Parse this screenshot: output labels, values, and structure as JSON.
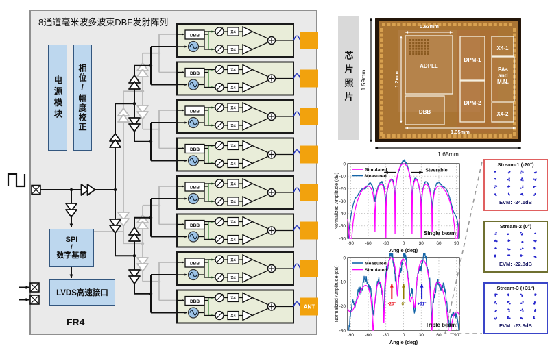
{
  "diagram": {
    "title": "8通道毫米波多波束DBF发射阵列",
    "power_module_label": "电源模块",
    "phase_cal_label": "相位/幅度校正",
    "spi_line1": "SPI",
    "spi_line2": "/",
    "spi_line3": "数字基带",
    "lvds_label": "LVDS高速接口",
    "substrate_label": "FR4",
    "ant_label": "ANT",
    "num_channels": 8,
    "channel": {
      "dbb_label": "DBB",
      "multiplier_label": "X4"
    },
    "colors": {
      "panel_bg": "#eaeaea",
      "panel_border": "#8f8f8f",
      "block_bg": "#e9edd9",
      "block_border": "#1a1a1a",
      "orange": "#f2a20d",
      "osc_fill": "#9dc3e6",
      "green": "#3a8a3a",
      "gray_tree": "#b9b9b9",
      "wire_blue": "#2233bb"
    }
  },
  "chip": {
    "panel_label": "芯片照片",
    "blocks": [
      {
        "name": "ADPLL",
        "lines": [
          "ADPLL"
        ]
      },
      {
        "name": "DBB",
        "lines": [
          "DBB"
        ]
      },
      {
        "name": "DPM-1",
        "lines": [
          "DPM-1"
        ]
      },
      {
        "name": "DPM-2",
        "lines": [
          "DPM-2"
        ]
      },
      {
        "name": "X4-1",
        "lines": [
          "X4-1"
        ]
      },
      {
        "name": "PAs and M.N.",
        "lines": [
          "PAs",
          "and",
          "M.N."
        ]
      },
      {
        "name": "X4-2",
        "lines": [
          "X4-2"
        ]
      }
    ],
    "dimensions": {
      "outer_height": "1.59mm",
      "outer_width": "1.65mm",
      "inner_width": "1.35mm",
      "inner_height": "1.2mm",
      "adpll_width": "0.63mm"
    }
  },
  "chart_data": [
    {
      "id": "single-beam",
      "type": "line",
      "title": "",
      "xlabel": "Angle (deg)",
      "ylabel": "Normalized Amplitude (dB)",
      "xlim": [
        -95,
        95
      ],
      "ylim": [
        -60,
        0
      ],
      "xticks": [
        -90,
        -60,
        -30,
        0,
        30,
        60,
        90
      ],
      "yticks": [
        0,
        -10,
        -20,
        -30,
        -40,
        -50,
        -60
      ],
      "grid": true,
      "legend_position": "top-left",
      "n_elements": 8,
      "beam_angles_deg": [
        0
      ],
      "series": [
        {
          "name": "Simulated",
          "color": "#ff00ff",
          "style": "clean"
        },
        {
          "name": "Measured",
          "color": "#1565a8",
          "style": "noisy"
        }
      ],
      "annotation": "Single beam",
      "steerable_label": "Steerable"
    },
    {
      "id": "triple-beam",
      "type": "line",
      "title": "",
      "xlabel": "Angle (deg)",
      "ylabel": "Normalized Amplitude (dB)",
      "xlim": [
        -95,
        95
      ],
      "ylim": [
        -30,
        0
      ],
      "xticks": [
        -90,
        -60,
        -30,
        0,
        30,
        60,
        90
      ],
      "yticks": [
        0,
        -10,
        -20,
        -30
      ],
      "grid": true,
      "legend_position": "top-left",
      "n_elements": 8,
      "beam_angles_deg": [
        -20,
        0,
        31
      ],
      "series": [
        {
          "name": "Measured",
          "color": "#1565a8",
          "style": "noisy"
        },
        {
          "name": "Simulated",
          "color": "#ff00ff",
          "style": "clean"
        }
      ],
      "annotation": "Triple beam",
      "beam_markers": [
        {
          "angle": -20,
          "label": "-20°",
          "color": "#e8111a"
        },
        {
          "angle": 0,
          "label": "0°",
          "color": "#8f7d00"
        },
        {
          "angle": 31,
          "label": "+31°",
          "color": "#1515cf"
        }
      ]
    }
  ],
  "streams": [
    {
      "label": "Stream-1 (-20°)",
      "evm": "EVM: -24.1dB",
      "border_color": "#e06060",
      "modulation": "16QAM",
      "dot_color": "#2525cc"
    },
    {
      "label": "Stream-2 (0°)",
      "evm": "EVM: -22.8dB",
      "border_color": "#6f7030",
      "modulation": "16QAM",
      "dot_color": "#2525cc"
    },
    {
      "label": "Stream-3 (+31°)",
      "evm": "EVM: -23.8dB",
      "border_color": "#3a45c8",
      "modulation": "16QAM",
      "dot_color": "#2525cc"
    }
  ]
}
